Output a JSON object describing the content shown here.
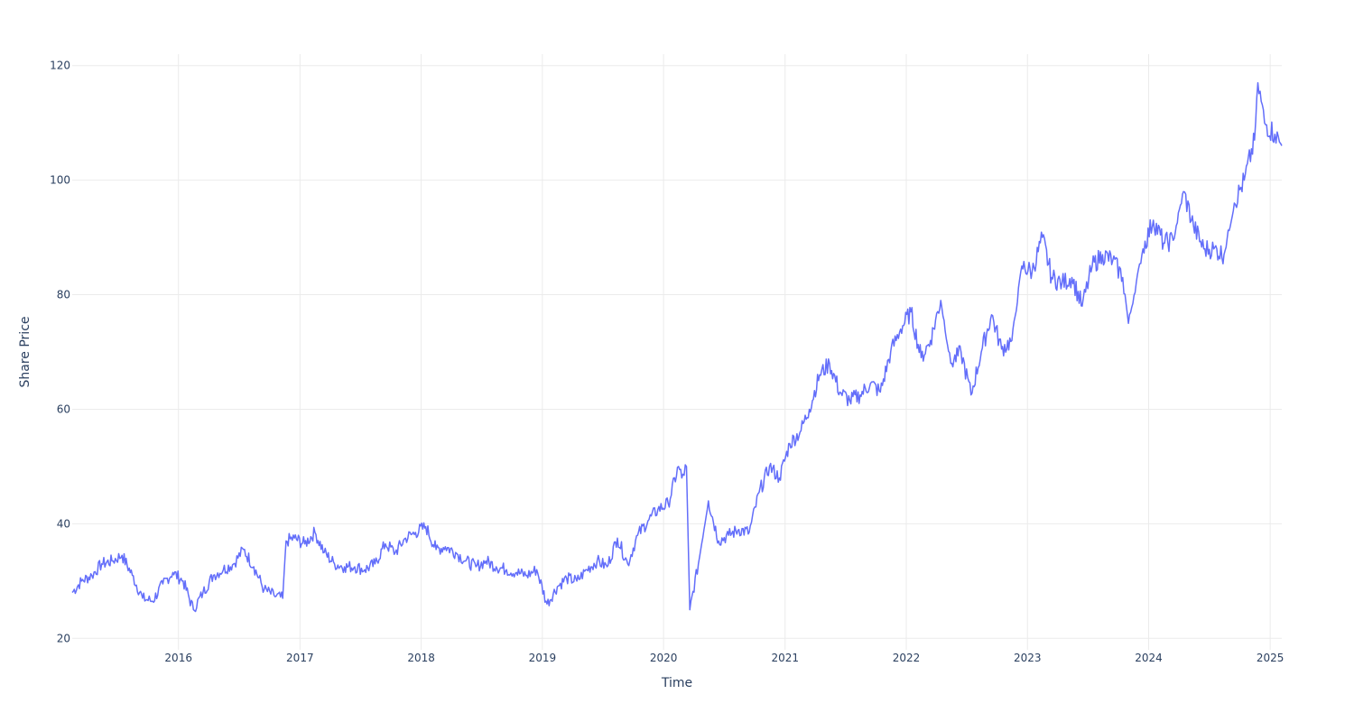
{
  "chart_data": {
    "type": "line",
    "title": "",
    "xlabel": "Time",
    "ylabel": "Share Price",
    "x_range": [
      "2015-02-15",
      "2025-02-05"
    ],
    "ylim": [
      18,
      122
    ],
    "x_tick_labels": [
      "2016",
      "2017",
      "2018",
      "2019",
      "2020",
      "2021",
      "2022",
      "2023",
      "2024",
      "2025"
    ],
    "y_ticks": [
      20,
      40,
      60,
      80,
      100,
      120
    ],
    "grid": true,
    "legend": "none",
    "series": [
      {
        "color": "#636efa",
        "x": [
          "2015-02-15",
          "2015-03-15",
          "2015-04-15",
          "2015-05-15",
          "2015-06-15",
          "2015-07-15",
          "2015-08-15",
          "2015-09-15",
          "2015-10-15",
          "2015-11-15",
          "2015-12-15",
          "2016-01-15",
          "2016-02-15",
          "2016-03-15",
          "2016-04-15",
          "2016-05-15",
          "2016-06-15",
          "2016-07-15",
          "2016-08-15",
          "2016-09-15",
          "2016-10-15",
          "2016-11-10",
          "2016-11-20",
          "2016-12-15",
          "2017-01-15",
          "2017-02-15",
          "2017-03-15",
          "2017-04-15",
          "2017-05-15",
          "2017-06-15",
          "2017-07-15",
          "2017-08-15",
          "2017-09-15",
          "2017-10-15",
          "2017-11-15",
          "2017-12-15",
          "2018-01-15",
          "2018-02-15",
          "2018-03-15",
          "2018-04-15",
          "2018-05-15",
          "2018-06-15",
          "2018-07-15",
          "2018-08-15",
          "2018-09-15",
          "2018-10-15",
          "2018-11-15",
          "2018-12-15",
          "2019-01-15",
          "2019-02-15",
          "2019-03-15",
          "2019-04-15",
          "2019-05-15",
          "2019-06-15",
          "2019-07-15",
          "2019-08-15",
          "2019-09-15",
          "2019-10-15",
          "2019-11-15",
          "2019-12-15",
          "2020-01-15",
          "2020-02-15",
          "2020-02-25",
          "2020-03-10",
          "2020-03-20",
          "2020-04-15",
          "2020-05-15",
          "2020-06-15",
          "2020-07-15",
          "2020-08-15",
          "2020-09-15",
          "2020-10-15",
          "2020-11-15",
          "2020-12-15",
          "2021-01-15",
          "2021-02-15",
          "2021-03-15",
          "2021-04-15",
          "2021-05-15",
          "2021-06-15",
          "2021-07-15",
          "2021-08-15",
          "2021-09-15",
          "2021-10-15",
          "2021-11-15",
          "2021-12-15",
          "2022-01-15",
          "2022-02-15",
          "2022-03-15",
          "2022-04-15",
          "2022-05-15",
          "2022-06-15",
          "2022-07-15",
          "2022-08-15",
          "2022-09-15",
          "2022-10-15",
          "2022-11-15",
          "2022-12-15",
          "2023-01-15",
          "2023-02-15",
          "2023-03-15",
          "2023-04-15",
          "2023-05-15",
          "2023-06-15",
          "2023-07-15",
          "2023-08-15",
          "2023-09-15",
          "2023-10-15",
          "2023-11-01",
          "2023-12-15",
          "2024-01-15",
          "2024-02-15",
          "2024-03-15",
          "2024-04-15",
          "2024-05-15",
          "2024-06-15",
          "2024-07-15",
          "2024-08-15",
          "2024-09-15",
          "2024-10-15",
          "2024-11-15",
          "2024-11-25",
          "2024-12-15",
          "2025-01-15",
          "2025-02-05"
        ],
        "y": [
          28,
          30,
          31,
          33,
          33.5,
          34.5,
          31,
          27,
          26.5,
          29.5,
          31.5,
          30,
          25,
          28,
          31,
          32,
          33,
          35.5,
          32.5,
          28.5,
          27.5,
          27,
          37,
          37.5,
          36.5,
          38.5,
          35,
          33,
          32.5,
          32.5,
          32,
          33,
          36.5,
          35,
          37.5,
          38.5,
          39.5,
          35.5,
          36,
          35,
          33.5,
          32.5,
          33.5,
          32.5,
          32,
          31.5,
          31,
          32,
          26,
          29,
          30.5,
          30,
          32,
          33.5,
          32.5,
          37.5,
          33,
          38,
          40.5,
          42.5,
          43.5,
          50,
          48,
          50,
          25,
          33,
          44,
          37,
          38,
          39,
          38.5,
          45.5,
          50,
          48,
          54,
          56,
          60,
          66,
          68,
          63,
          61.5,
          62.5,
          64.5,
          63,
          70,
          74,
          77,
          69,
          72,
          79,
          68,
          70,
          62.5,
          70,
          76.5,
          70.5,
          72,
          85,
          84,
          90,
          83,
          82,
          83,
          78,
          85,
          87,
          86,
          83,
          75,
          88,
          93,
          89,
          89.5,
          98,
          92,
          88,
          88,
          87,
          96,
          100,
          107,
          117,
          110,
          108,
          106
        ]
      }
    ]
  }
}
